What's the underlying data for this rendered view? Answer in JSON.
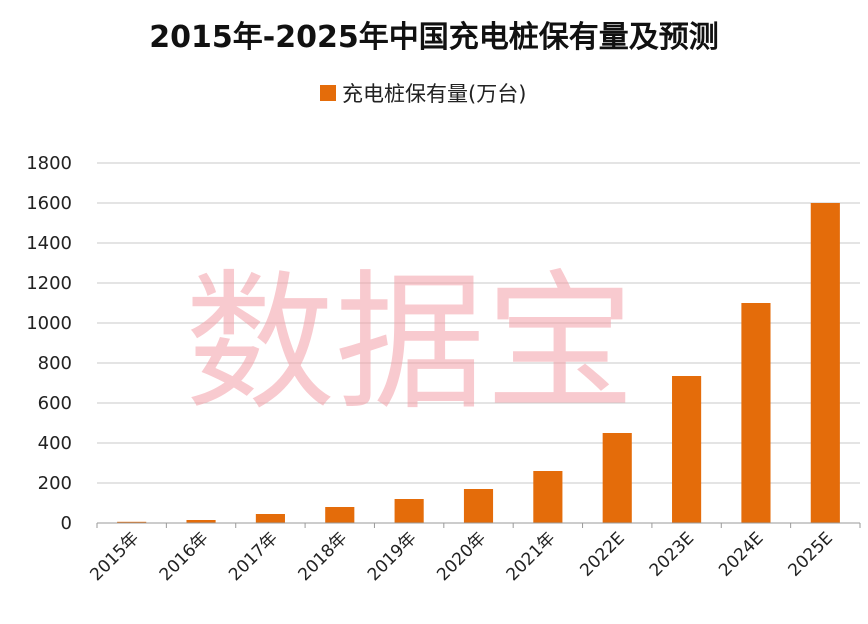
{
  "chart_data": {
    "type": "bar",
    "title": "2015年-2025年中国充电桩保有量及预测",
    "categories": [
      "2015年",
      "2016年",
      "2017年",
      "2018年",
      "2019年",
      "2020年",
      "2021年",
      "2022E",
      "2023E",
      "2024E",
      "2025E"
    ],
    "series": [
      {
        "name": "充电桩保有量(万台)",
        "values": [
          6,
          15,
          45,
          80,
          120,
          170,
          260,
          450,
          735,
          1100,
          1600
        ]
      }
    ],
    "ylim": [
      0,
      1800
    ],
    "yticks": [
      0,
      200,
      400,
      600,
      800,
      1000,
      1200,
      1400,
      1600,
      1800
    ],
    "grid": true,
    "legend_position": "top",
    "bar_color": "#E46C0A",
    "watermark": "数据宝"
  }
}
